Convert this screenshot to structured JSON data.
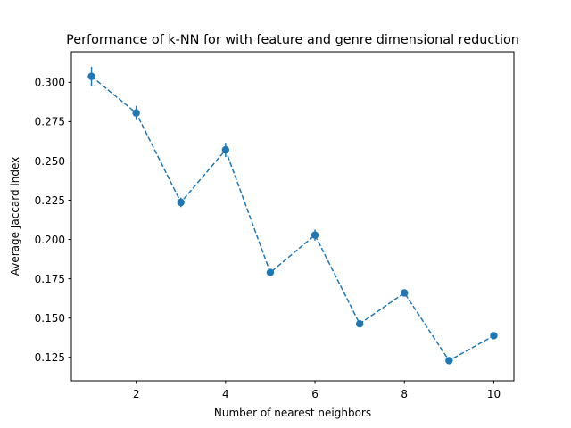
{
  "chart_data": {
    "type": "line",
    "title": "Performance of k-NN for with feature and genre dimensional reduction",
    "xlabel": "Number of nearest neighbors",
    "ylabel": "Average Jaccard index",
    "xlim": [
      0.55,
      10.45
    ],
    "ylim": [
      0.1101,
      0.3195
    ],
    "xticks": [
      2,
      4,
      6,
      8,
      10
    ],
    "yticks": [
      0.125,
      0.15,
      0.175,
      0.2,
      0.225,
      0.25,
      0.275,
      0.3
    ],
    "ytick_labels": [
      "0.125",
      "0.150",
      "0.175",
      "0.200",
      "0.225",
      "0.250",
      "0.275",
      "0.300"
    ],
    "grid": false,
    "series": [
      {
        "color": "#1f77b4",
        "line_style": "dashed",
        "marker": "circle",
        "x": [
          1,
          2,
          3,
          4,
          5,
          6,
          7,
          8,
          9,
          10
        ],
        "y": [
          0.3038,
          0.2805,
          0.2236,
          0.257,
          0.179,
          0.2028,
          0.1463,
          0.166,
          0.1229,
          0.1388
        ],
        "yerr": [
          0.006,
          0.0045,
          0.003,
          0.0045,
          0.002,
          0.0035,
          0.0015,
          0.002,
          0.0015,
          0.002
        ]
      }
    ]
  }
}
